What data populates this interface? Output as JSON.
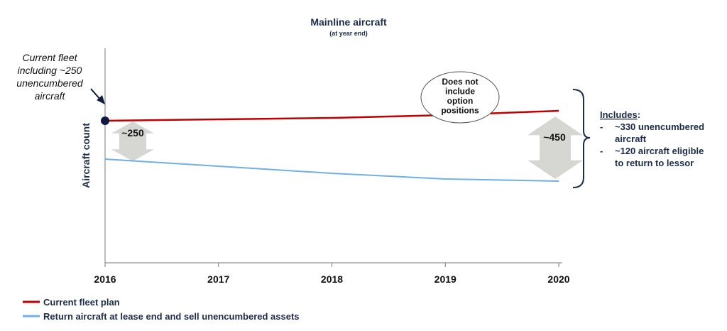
{
  "chart_data": {
    "type": "line",
    "title": "Mainline aircraft",
    "subtitle": "(at year end)",
    "ylabel": "Aircraft count",
    "xlabel": "",
    "categories": [
      "2016",
      "2017",
      "2018",
      "2019",
      "2020"
    ],
    "series": [
      {
        "name": "Current fleet plan",
        "color": "#c00000",
        "values": [
          100,
          101,
          102,
          104,
          107
        ]
      },
      {
        "name": "Return aircraft at lease end and sell unencumbered assets",
        "color": "#6fb0e8",
        "values": [
          73,
          68,
          63,
          59,
          57.5
        ]
      }
    ],
    "ylim": [
      0,
      150
    ],
    "grid": false,
    "legend_position": "bottom-left",
    "annotations": {
      "start_note": [
        "Current fleet",
        "including ~250",
        "unencumbered",
        "aircraft"
      ],
      "bubble": [
        "Does not",
        "include",
        "option",
        "positions"
      ],
      "gap_2016": "~250",
      "gap_2020": "~450",
      "includes_heading": "Includes",
      "includes_heading_suffix": ":",
      "includes_items": [
        {
          "dash": "-",
          "lines": [
            "~330 unencumbered",
            "aircraft"
          ]
        },
        {
          "dash": "-",
          "lines": [
            "~120 aircraft eligible",
            "to return to lessor"
          ]
        }
      ]
    },
    "colors": {
      "arrow": "#d6d6d3",
      "marker": "#0d1b3e",
      "text": "#1c2b4a"
    }
  }
}
